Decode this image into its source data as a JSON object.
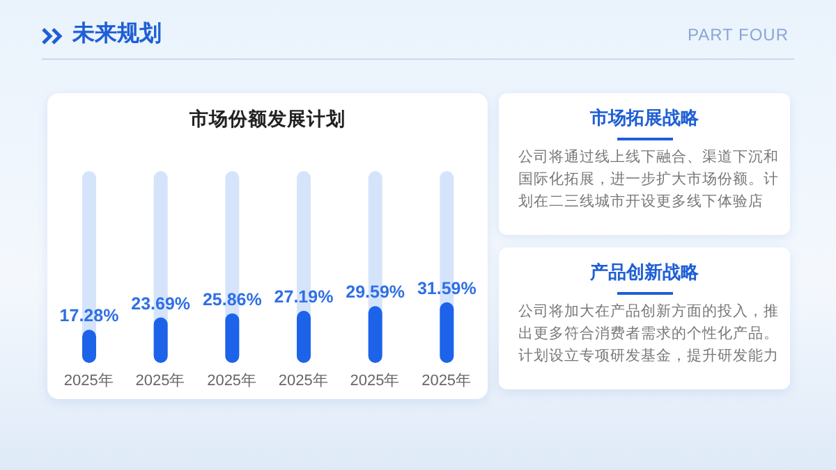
{
  "chart_data": [
    {
      "type": "bar",
      "title": "市场份额发展计划",
      "annotations": [
        "未来规划",
        "PART FOUR"
      ],
      "categories": [
        "2025年",
        "2025年",
        "2025年",
        "2025年",
        "2025年",
        "2025年"
      ],
      "values": [
        17.28,
        23.69,
        25.86,
        27.19,
        29.59,
        31.59
      ],
      "value_labels": [
        "17.28%",
        "23.69%",
        "25.86%",
        "27.19%",
        "29.59%",
        "31.59%"
      ],
      "color": "#1d63ea",
      "ylim": [
        0,
        100
      ],
      "tick_labels": "x"
    },
    {
      "type": "other",
      "title": "市场拓展战略",
      "annotations": [
        "公司将通过线上线下融合、渠道下沉和国际化拓展，进一步扩大市场份额。计划在二三线城市开设更多线下体验店"
      ]
    },
    {
      "type": "other",
      "title": "产品创新战略",
      "annotations": [
        "公司将加大在产品创新方面的投入，推出更多符合消费者需求的个性化产品。计划设立专项研发基金，提升研发能力"
      ]
    }
  ]
}
